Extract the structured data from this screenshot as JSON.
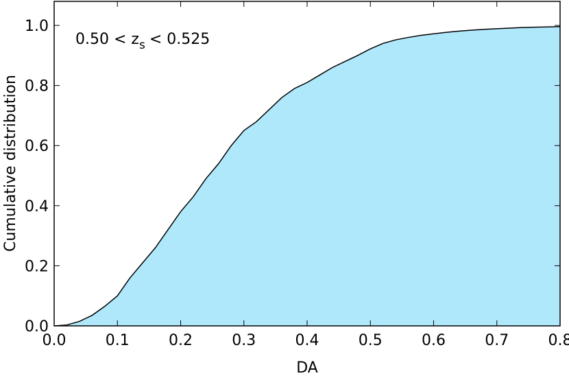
{
  "chart_data": {
    "type": "area",
    "annotation": [
      "0.50 < z",
      "s",
      "< 0.525"
    ],
    "xlabel": "DA",
    "ylabel": "Cumulative distribution",
    "x": [
      0,
      0.02,
      0.04,
      0.06,
      0.08,
      0.1,
      0.12,
      0.14,
      0.16,
      0.18,
      0.2,
      0.22,
      0.24,
      0.26,
      0.28,
      0.3,
      0.32,
      0.34,
      0.36,
      0.38,
      0.4,
      0.42,
      0.44,
      0.46,
      0.48,
      0.5,
      0.52,
      0.54,
      0.56,
      0.58,
      0.6,
      0.62,
      0.64,
      0.66,
      0.68,
      0.7,
      0.72,
      0.74,
      0.76,
      0.78,
      0.8
    ],
    "series": [
      {
        "color": "#b0e8fb",
        "values": [
          0,
          0.003,
          0.015,
          0.035,
          0.065,
          0.1,
          0.16,
          0.21,
          0.26,
          0.32,
          0.38,
          0.43,
          0.49,
          0.54,
          0.6,
          0.65,
          0.68,
          0.72,
          0.76,
          0.79,
          0.81,
          0.835,
          0.86,
          0.88,
          0.9,
          0.922,
          0.94,
          0.952,
          0.96,
          0.967,
          0.972,
          0.977,
          0.981,
          0.984,
          0.987,
          0.989,
          0.991,
          0.993,
          0.994,
          0.995,
          0.996
        ]
      }
    ],
    "xlim": [
      0,
      0.8
    ],
    "ylim": [
      0,
      1.08
    ],
    "xticks": [
      {
        "value": 0,
        "label": "0.0"
      },
      0.1,
      0.2,
      0.3,
      0.4,
      0.5,
      0.6,
      0.7,
      0.8
    ],
    "yticks": [
      {
        "value": 0,
        "label": "0.0"
      },
      0.2,
      0.4,
      0.6,
      0.8,
      {
        "value": 1,
        "label": "1.0"
      }
    ]
  }
}
